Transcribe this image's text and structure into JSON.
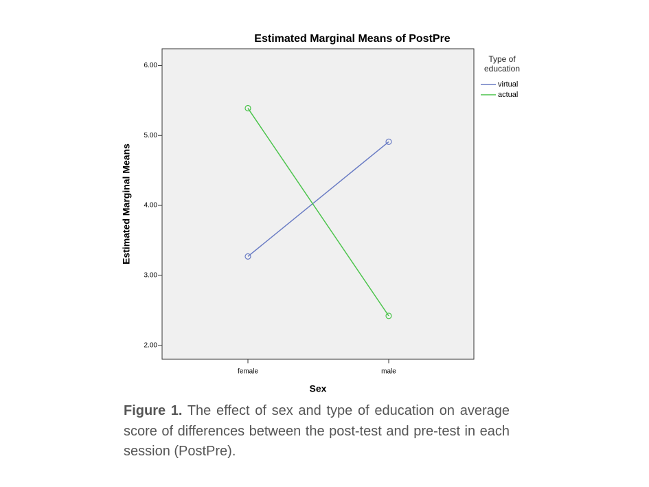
{
  "chart_data": {
    "type": "line",
    "title": "Estimated Marginal Means of PostPre",
    "x_label": "Sex",
    "y_label": "Estimated Marginal Means",
    "categories": [
      "female",
      "male"
    ],
    "series": [
      {
        "name": "virtual",
        "color": "#6a7cc4",
        "values": [
          3.27,
          4.91
        ]
      },
      {
        "name": "actual",
        "color": "#4cc44c",
        "values": [
          5.39,
          2.42
        ]
      }
    ],
    "legend_title": "Type of education",
    "ylim": [
      1.8,
      6.24
    ],
    "yticks": [
      {
        "value": 2,
        "label": "2.00"
      },
      {
        "value": 3,
        "label": "3.00"
      },
      {
        "value": 4,
        "label": "4.00"
      },
      {
        "value": 5,
        "label": "5.00"
      },
      {
        "value": 6,
        "label": "6.00"
      }
    ],
    "grid": false
  },
  "caption": {
    "label": "Figure 1.",
    "text": "The effect of sex and type of education on average score of differences between the post-test and pre-test in each session (PostPre)."
  }
}
